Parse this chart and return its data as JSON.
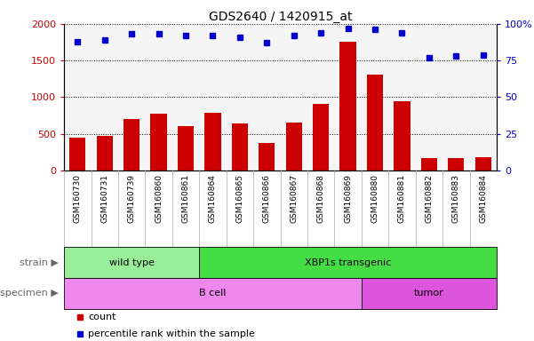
{
  "title": "GDS2640 / 1420915_at",
  "samples": [
    "GSM160730",
    "GSM160731",
    "GSM160739",
    "GSM160860",
    "GSM160861",
    "GSM160864",
    "GSM160865",
    "GSM160866",
    "GSM160867",
    "GSM160868",
    "GSM160869",
    "GSM160880",
    "GSM160881",
    "GSM160882",
    "GSM160883",
    "GSM160884"
  ],
  "counts": [
    450,
    475,
    700,
    775,
    600,
    790,
    640,
    380,
    660,
    910,
    1760,
    1310,
    940,
    175,
    175,
    185
  ],
  "percentile": [
    88,
    89,
    93,
    93,
    92,
    92,
    91,
    87,
    92,
    94,
    97,
    96,
    94,
    77,
    78,
    79
  ],
  "bar_color": "#cc0000",
  "dot_color": "#0000cc",
  "ylim_left": [
    0,
    2000
  ],
  "ylim_right": [
    0,
    100
  ],
  "yticks_left": [
    0,
    500,
    1000,
    1500,
    2000
  ],
  "yticks_right": [
    0,
    25,
    50,
    75,
    100
  ],
  "strain_groups": [
    {
      "label": "wild type",
      "start": 0,
      "end": 5,
      "color": "#99ee99"
    },
    {
      "label": "XBP1s transgenic",
      "start": 5,
      "end": 16,
      "color": "#44dd44"
    }
  ],
  "specimen_groups": [
    {
      "label": "B cell",
      "start": 0,
      "end": 11,
      "color": "#ee88ee"
    },
    {
      "label": "tumor",
      "start": 11,
      "end": 16,
      "color": "#dd55dd"
    }
  ],
  "legend_items": [
    {
      "label": "count",
      "color": "#cc0000"
    },
    {
      "label": "percentile rank within the sample",
      "color": "#0000cc"
    }
  ],
  "strain_label": "strain",
  "specimen_label": "specimen",
  "axis_bg_color": "#d8d8d8",
  "plot_bg_color": "#f5f5f5",
  "grid_color": "#000000",
  "title_color": "#000000",
  "left_color": "#cc0000",
  "right_color": "#0000cc"
}
